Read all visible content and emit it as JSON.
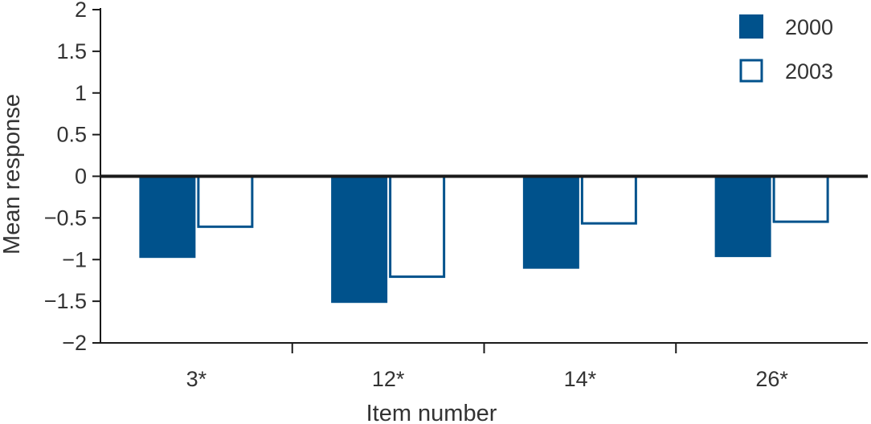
{
  "chart_data": {
    "type": "bar",
    "categories": [
      "3*",
      "12*",
      "14*",
      "26*"
    ],
    "series": [
      {
        "name": "2000",
        "values": [
          -0.98,
          -1.52,
          -1.11,
          -0.97
        ],
        "style": "filled"
      },
      {
        "name": "2003",
        "values": [
          -0.62,
          -1.22,
          -0.58,
          -0.56
        ],
        "style": "outline"
      }
    ],
    "xlabel": "Item number",
    "ylabel": "Mean response",
    "ylim": [
      -2,
      2
    ],
    "yticks": [
      2,
      1.5,
      1,
      0.5,
      0,
      -0.5,
      -1,
      -1.5,
      -2
    ],
    "ytick_labels": [
      "2",
      "1.5",
      "1",
      "0.5",
      "0",
      "−0.5",
      "−1",
      "−1.5",
      "−2"
    ],
    "legend_position": "top-right",
    "grid": false,
    "colors": {
      "bar": "#00528c",
      "axis": "#1a1a1a",
      "text": "#333333"
    }
  }
}
